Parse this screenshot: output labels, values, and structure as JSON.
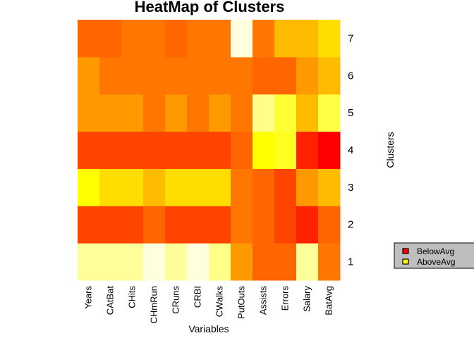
{
  "chart_data": {
    "type": "heatmap",
    "title": "HeatMap of Clusters",
    "xlabel": "Variables",
    "ylabel": "Clusters",
    "columns": [
      "Years",
      "CAtBat",
      "CHits",
      "CHmRun",
      "CRuns",
      "CRBI",
      "CWalks",
      "PutOuts",
      "Assists",
      "Errors",
      "Salary",
      "BatAvg"
    ],
    "rows": [
      "1",
      "2",
      "3",
      "4",
      "5",
      "6",
      "7"
    ],
    "colors": [
      [
        "#ffff99",
        "#ffff99",
        "#ffff99",
        "#ffffdd",
        "#ffff99",
        "#ffffdd",
        "#ffff88",
        "#ff9900",
        "#ff6600",
        "#ff6600",
        "#ffff99",
        "#ff7700"
      ],
      [
        "#ff4400",
        "#ff4400",
        "#ff4400",
        "#ff6600",
        "#ff4400",
        "#ff4400",
        "#ff4400",
        "#ff7700",
        "#ff6600",
        "#ff4400",
        "#ff2200",
        "#ff6600"
      ],
      [
        "#ffff00",
        "#ffdd00",
        "#ffdd00",
        "#ffbb00",
        "#ffdd00",
        "#ffdd00",
        "#ffdd00",
        "#ff7700",
        "#ff6600",
        "#ff4400",
        "#ff9900",
        "#ffbb00"
      ],
      [
        "#ff4400",
        "#ff4400",
        "#ff4400",
        "#ff4400",
        "#ff4400",
        "#ff4400",
        "#ff4400",
        "#ff6600",
        "#ffff00",
        "#ffff22",
        "#ff2200",
        "#ff0000"
      ],
      [
        "#ff9900",
        "#ff9900",
        "#ff9900",
        "#ff7700",
        "#ff9900",
        "#ff7700",
        "#ff9900",
        "#ff7700",
        "#ffff88",
        "#ffff33",
        "#ffbb00",
        "#ffff44"
      ],
      [
        "#ff9900",
        "#ff7700",
        "#ff7700",
        "#ff7700",
        "#ff7700",
        "#ff7700",
        "#ff7700",
        "#ff7700",
        "#ff6600",
        "#ff6600",
        "#ff9900",
        "#ffbb00"
      ],
      [
        "#ff6600",
        "#ff6600",
        "#ff7700",
        "#ff7700",
        "#ff6600",
        "#ff7700",
        "#ff7700",
        "#ffffdd",
        "#ff7700",
        "#ffbb00",
        "#ffbb00",
        "#ffdd00"
      ]
    ],
    "legend": [
      {
        "label": "BelowAvg",
        "color": "#ff0000"
      },
      {
        "label": "AboveAvg",
        "color": "#ffff00"
      }
    ]
  }
}
